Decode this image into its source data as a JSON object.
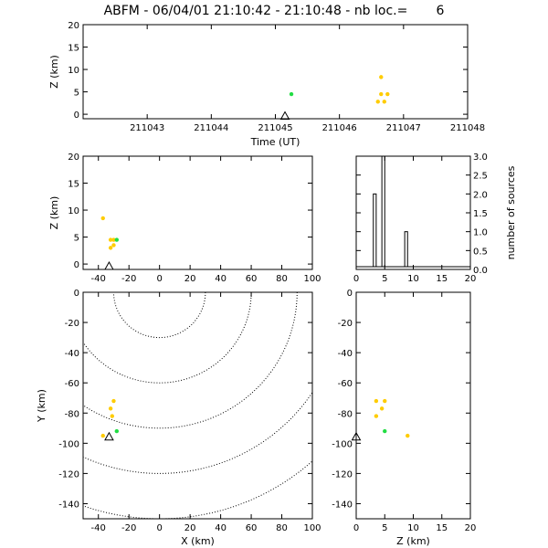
{
  "title": "ABFM - 06/04/01 21:10:42 - 21:10:48 - nb loc.=       6",
  "chart_data": [
    {
      "id": "time-height",
      "type": "scatter",
      "xlabel": "Time (UT)",
      "ylabel": "Z (km)",
      "xlim": [
        211042,
        211048
      ],
      "ylim": [
        -1,
        20
      ],
      "xticks": [
        "211043",
        "211044",
        "211045",
        "211046",
        "211047",
        "211048"
      ],
      "yticks": [
        0,
        5,
        10,
        15,
        20
      ],
      "points": [
        {
          "x": 211045.25,
          "y": 4.5,
          "color": "#22dd44"
        },
        {
          "x": 211046.65,
          "y": 8.3,
          "color": "#ffcc00"
        },
        {
          "x": 211046.65,
          "y": 4.5,
          "color": "#ffcc00"
        },
        {
          "x": 211046.75,
          "y": 4.5,
          "color": "#ffcc00"
        },
        {
          "x": 211046.6,
          "y": 2.8,
          "color": "#ffcc00"
        },
        {
          "x": 211046.7,
          "y": 2.8,
          "color": "#ffcc00"
        }
      ],
      "station": {
        "x": 211045.15,
        "y": -0.5
      }
    },
    {
      "id": "x-z",
      "type": "scatter",
      "ylabel": "Z (km)",
      "xlim": [
        -50,
        100
      ],
      "ylim": [
        -1,
        20
      ],
      "xticks": [
        -40,
        -20,
        0,
        20,
        40,
        60,
        80,
        100
      ],
      "yticks": [
        0,
        5,
        10,
        15,
        20
      ],
      "points": [
        {
          "x": -37,
          "y": 8.5,
          "color": "#ffcc00"
        },
        {
          "x": -32,
          "y": 4.5,
          "color": "#ffcc00"
        },
        {
          "x": -30,
          "y": 4.5,
          "color": "#ffcc00"
        },
        {
          "x": -32,
          "y": 3.0,
          "color": "#ffcc00"
        },
        {
          "x": -30,
          "y": 3.5,
          "color": "#ffcc00"
        },
        {
          "x": -28,
          "y": 4.5,
          "color": "#22dd44"
        }
      ],
      "station": {
        "x": -33,
        "y": -0.5
      }
    },
    {
      "id": "histogram",
      "type": "bar",
      "ylabel": "number of sources",
      "xlim": [
        0,
        20
      ],
      "ylim": [
        0,
        3
      ],
      "xticks": [
        0,
        5,
        10,
        15,
        20
      ],
      "yticks": [
        "0.0",
        "0.5",
        "1.0",
        "1.5",
        "2.0",
        "2.5",
        "3.0"
      ],
      "bins": [
        {
          "x0": 3,
          "x1": 3.5,
          "count": 2
        },
        {
          "x0": 4.5,
          "x1": 5,
          "count": 3
        },
        {
          "x0": 8.5,
          "x1": 9,
          "count": 1
        }
      ]
    },
    {
      "id": "x-y",
      "type": "scatter",
      "xlabel": "X (km)",
      "ylabel": "Y (km)",
      "xlim": [
        -50,
        100
      ],
      "ylim": [
        -150,
        0
      ],
      "xticks": [
        -40,
        -20,
        0,
        20,
        40,
        60,
        80,
        100
      ],
      "yticks": [
        -140,
        -120,
        -100,
        -80,
        -60,
        -40,
        -20,
        0
      ],
      "range_rings_km": [
        30,
        60,
        90,
        120,
        150
      ],
      "points": [
        {
          "x": -30,
          "y": -72,
          "color": "#ffcc00"
        },
        {
          "x": -32,
          "y": -77,
          "color": "#ffcc00"
        },
        {
          "x": -31,
          "y": -82,
          "color": "#ffcc00"
        },
        {
          "x": -37,
          "y": -95,
          "color": "#ffcc00"
        },
        {
          "x": -28,
          "y": -92,
          "color": "#22dd44"
        }
      ],
      "station": {
        "x": -33,
        "y": -96
      }
    },
    {
      "id": "z-y",
      "type": "scatter",
      "xlabel": "Z (km)",
      "xlim": [
        0,
        20
      ],
      "ylim": [
        -150,
        0
      ],
      "xticks": [
        0,
        5,
        10,
        15,
        20
      ],
      "yticks": [
        -140,
        -120,
        -100,
        -80,
        -60,
        -40,
        -20,
        0
      ],
      "points": [
        {
          "x": 3.5,
          "y": -72,
          "color": "#ffcc00"
        },
        {
          "x": 5,
          "y": -72,
          "color": "#ffcc00"
        },
        {
          "x": 4.5,
          "y": -77,
          "color": "#ffcc00"
        },
        {
          "x": 3.5,
          "y": -82,
          "color": "#ffcc00"
        },
        {
          "x": 5,
          "y": -92,
          "color": "#22dd44"
        },
        {
          "x": 9,
          "y": -95,
          "color": "#ffcc00"
        }
      ],
      "station": {
        "x": 0,
        "y": -96
      }
    }
  ]
}
